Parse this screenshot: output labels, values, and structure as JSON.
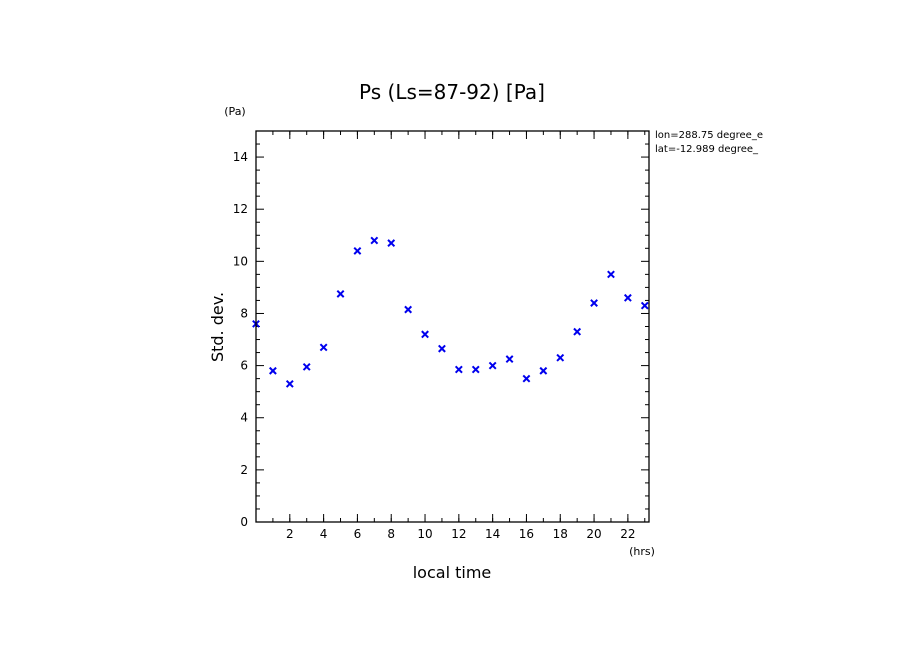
{
  "chart_data": {
    "type": "scatter",
    "title": "Ps (Ls=87-92) [Pa]",
    "xlabel": "local time",
    "ylabel": "Std. dev.",
    "x_unit": "(hrs)",
    "y_unit": "(Pa)",
    "xlim": [
      0,
      23.25
    ],
    "ylim": [
      0,
      15
    ],
    "x_ticks": [
      2,
      4,
      6,
      8,
      10,
      12,
      14,
      16,
      18,
      20,
      22
    ],
    "x_tick_labels": [
      "2",
      "4",
      "6",
      "8",
      "10",
      "12",
      "14",
      "16",
      "18",
      "20",
      "22"
    ],
    "y_ticks": [
      0,
      2,
      4,
      6,
      8,
      10,
      12,
      14
    ],
    "y_tick_labels": [
      "0",
      "2",
      "4",
      "6",
      "8",
      "10",
      "12",
      "14"
    ],
    "marker": "x",
    "marker_color": "#0000ee",
    "annotations": [
      "lon=288.75 degree_e",
      "lat=-12.989 degree_"
    ],
    "series": [
      {
        "x": [
          0.0,
          1.0,
          2.0,
          3.0,
          4.0,
          5.0,
          6.0,
          7.0,
          8.0,
          9.0,
          10.0,
          11.0,
          12.0,
          13.0,
          14.0,
          15.0,
          16.0,
          17.0,
          18.0,
          19.0,
          20.0,
          21.0,
          22.0,
          23.0
        ],
        "y": [
          7.6,
          5.8,
          5.3,
          5.95,
          6.7,
          8.75,
          10.4,
          10.8,
          10.7,
          8.15,
          7.2,
          6.65,
          5.85,
          5.85,
          6.0,
          6.25,
          5.5,
          5.8,
          6.3,
          7.3,
          8.4,
          9.5,
          8.6,
          8.3
        ]
      }
    ]
  }
}
